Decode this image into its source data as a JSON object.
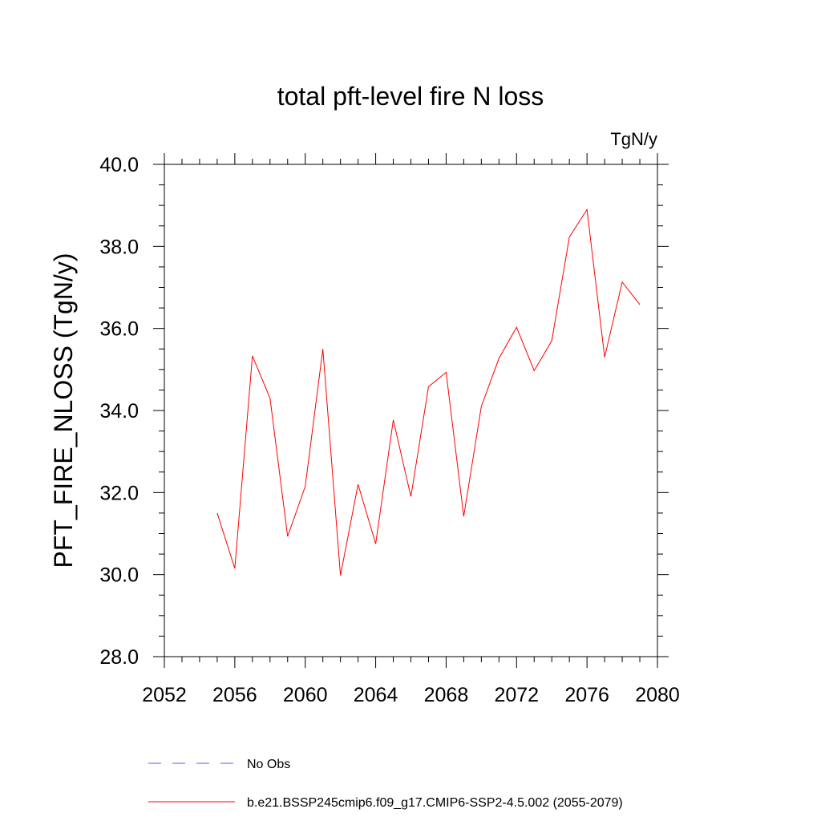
{
  "chart_data": {
    "type": "line",
    "title": "total pft-level fire N loss",
    "units_label": "TgN/y",
    "ylabel": "PFT_FIRE_NLOSS  (TgN/y)",
    "xlabel": "",
    "xlim": [
      2052,
      2080
    ],
    "ylim": [
      28.0,
      40.0
    ],
    "x_ticks": [
      "2052",
      "2056",
      "2060",
      "2064",
      "2068",
      "2072",
      "2076",
      "2080"
    ],
    "y_ticks": [
      "28.0",
      "30.0",
      "32.0",
      "34.0",
      "36.0",
      "38.0",
      "40.0"
    ],
    "series": [
      {
        "name": "b.e21.BSSP245cmip6.f09_g17.CMIP6-SSP2-4.5.002 (2055-2079)",
        "color": "#ff0000",
        "style": "solid",
        "x": [
          2055,
          2056,
          2057,
          2058,
          2059,
          2060,
          2061,
          2062,
          2063,
          2064,
          2065,
          2066,
          2067,
          2068,
          2069,
          2070,
          2071,
          2072,
          2073,
          2074,
          2075,
          2076,
          2077,
          2078,
          2079
        ],
        "y": [
          31.5,
          30.15,
          35.33,
          34.3,
          30.93,
          32.15,
          35.5,
          29.98,
          32.2,
          30.75,
          33.77,
          31.9,
          34.58,
          34.93,
          31.42,
          34.1,
          35.27,
          36.03,
          34.97,
          35.7,
          38.23,
          38.9,
          35.3,
          37.13,
          36.58
        ]
      }
    ],
    "legend": [
      {
        "label": "No Obs",
        "color": "#6a5acd",
        "style": "dashed"
      },
      {
        "label": "b.e21.BSSP245cmip6.f09_g17.CMIP6-SSP2-4.5.002 (2055-2079)",
        "color": "#ff0000",
        "style": "solid"
      }
    ],
    "legend_position": "bottom",
    "grid": false
  }
}
